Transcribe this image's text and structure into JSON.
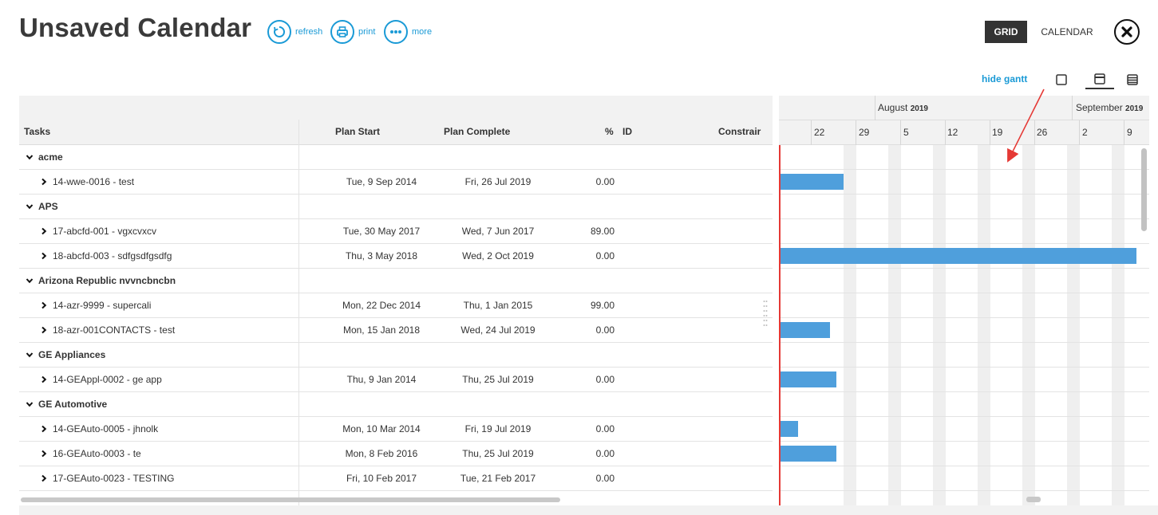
{
  "header": {
    "title": "Unsaved Calendar",
    "tools": [
      {
        "label": "refresh",
        "icon": "refresh-icon"
      },
      {
        "label": "print",
        "icon": "print-icon"
      },
      {
        "label": "more",
        "icon": "more-icon"
      }
    ],
    "grid_label": "GRID",
    "calendar_label": "CALENDAR",
    "close_icon": "close-icon"
  },
  "view": {
    "hide_gantt_label": "hide gantt",
    "icons": [
      "single-pane-icon",
      "split-pane-icon",
      "list-pane-icon"
    ]
  },
  "grid": {
    "columns": [
      "Tasks",
      "Plan Start",
      "Plan Complete",
      "%",
      "ID",
      "Constrair"
    ],
    "rows": [
      {
        "type": "group",
        "name": "acme"
      },
      {
        "type": "task",
        "name": "14-wwe-0016 - test",
        "plan_start": "Tue, 9 Sep 2014",
        "plan_complete": "Fri, 26 Jul 2019",
        "percent": "0.00"
      },
      {
        "type": "group",
        "name": "APS"
      },
      {
        "type": "task",
        "name": "17-abcfd-001 - vgxcvxcv",
        "plan_start": "Tue, 30 May 2017",
        "plan_complete": "Wed, 7 Jun 2017",
        "percent": "89.00"
      },
      {
        "type": "task",
        "name": "18-abcfd-003 - sdfgsdfgsdfg",
        "plan_start": "Thu, 3 May 2018",
        "plan_complete": "Wed, 2 Oct 2019",
        "percent": "0.00"
      },
      {
        "type": "group",
        "name": "Arizona Republic nvvncbncbn"
      },
      {
        "type": "task",
        "name": "14-azr-9999 - supercali",
        "plan_start": "Mon, 22 Dec 2014",
        "plan_complete": "Thu, 1 Jan 2015",
        "percent": "99.00"
      },
      {
        "type": "task",
        "name": "18-azr-001CONTACTS - test",
        "plan_start": "Mon, 15 Jan 2018",
        "plan_complete": "Wed, 24 Jul 2019",
        "percent": "0.00"
      },
      {
        "type": "group",
        "name": "GE Appliances"
      },
      {
        "type": "task",
        "name": "14-GEAppl-0002 - ge app",
        "plan_start": "Thu, 9 Jan 2014",
        "plan_complete": "Thu, 25 Jul 2019",
        "percent": "0.00"
      },
      {
        "type": "group",
        "name": "GE Automotive"
      },
      {
        "type": "task",
        "name": "14-GEAuto-0005 - jhnolk",
        "plan_start": "Mon, 10 Mar 2014",
        "plan_complete": "Fri, 19 Jul 2019",
        "percent": "0.00"
      },
      {
        "type": "task",
        "name": "16-GEAuto-0003 - te",
        "plan_start": "Mon, 8 Feb 2016",
        "plan_complete": "Thu, 25 Jul 2019",
        "percent": "0.00"
      },
      {
        "type": "task",
        "name": "17-GEAuto-0023 - TESTING",
        "plan_start": "Fri, 10 Feb 2017",
        "plan_complete": "Tue, 21 Feb 2017",
        "percent": "0.00"
      }
    ]
  },
  "gantt": {
    "months": [
      {
        "name": "August",
        "year": "2019"
      },
      {
        "name": "September",
        "year": "2019"
      }
    ],
    "days": [
      "22",
      "29",
      "5",
      "12",
      "19",
      "26",
      "2",
      "9"
    ],
    "colors": {
      "bar": "#4f9fdc",
      "today_line": "#e53935",
      "annotation_arrow": "#e53935"
    }
  }
}
